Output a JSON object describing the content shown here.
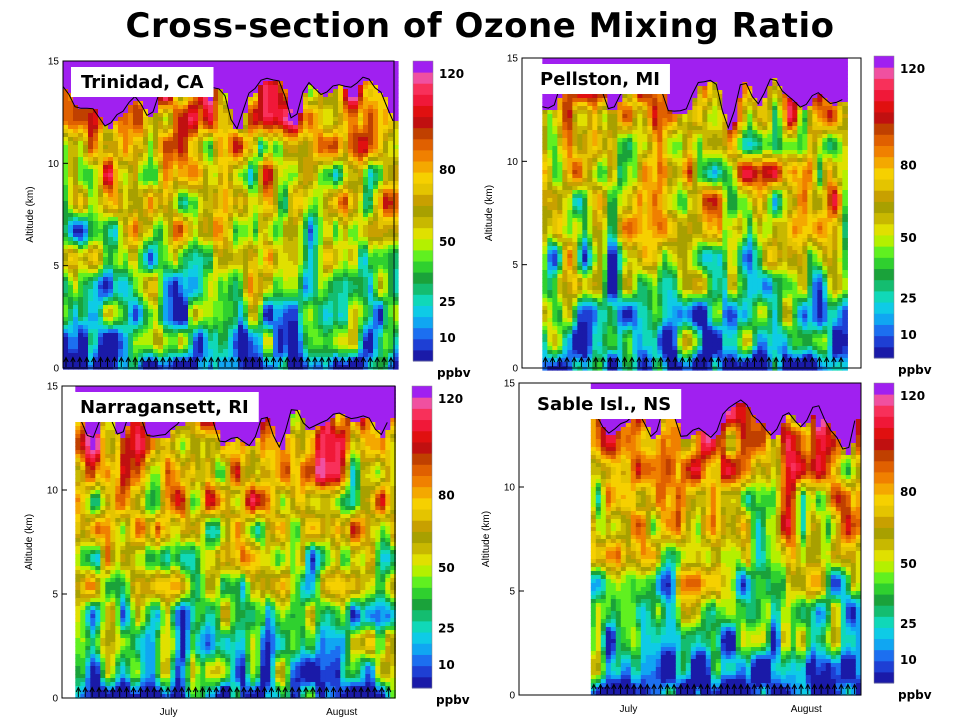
{
  "title": "Cross-section of Ozone Mixing Ratio",
  "chart_data": [
    {
      "type": "heatmap",
      "site": "Trinidad, CA",
      "ylabel": "Altitude (km)",
      "yticks": [
        0,
        5,
        10,
        15
      ],
      "ylim": [
        0,
        15
      ],
      "xticks": [],
      "colorbar": {
        "ticks": [
          120,
          80,
          50,
          25,
          10
        ],
        "unit": "ppbv",
        "range": [
          0,
          125
        ]
      },
      "coverage": [
        0.0,
        1.0
      ],
      "seed": 11,
      "launch_count": 48
    },
    {
      "type": "heatmap",
      "site": "Pellston, MI",
      "ylabel": "Altitude (km)",
      "yticks": [
        0,
        5,
        10,
        15
      ],
      "ylim": [
        0,
        15
      ],
      "xticks": [],
      "colorbar": {
        "ticks": [
          120,
          80,
          50,
          25,
          10
        ],
        "unit": "ppbv",
        "range": [
          0,
          125
        ]
      },
      "coverage": [
        0.06,
        0.95
      ],
      "seed": 23,
      "launch_count": 42
    },
    {
      "type": "heatmap",
      "site": "Narragansett, RI",
      "ylabel": "Altitude (km)",
      "yticks": [
        0,
        5,
        10,
        15
      ],
      "ylim": [
        0,
        15
      ],
      "xticks": [
        "July",
        "August"
      ],
      "colorbar": {
        "ticks": [
          120,
          80,
          50,
          25,
          10
        ],
        "unit": "ppbv",
        "range": [
          0,
          125
        ]
      },
      "coverage": [
        0.04,
        0.99
      ],
      "seed": 37,
      "launch_count": 46
    },
    {
      "type": "heatmap",
      "site": "Sable Isl., NS",
      "ylabel": "Altitude (km)",
      "yticks": [
        0,
        5,
        10,
        15
      ],
      "ylim": [
        0,
        15
      ],
      "xticks": [
        "July",
        "August"
      ],
      "colorbar": {
        "ticks": [
          120,
          80,
          50,
          25,
          10
        ],
        "unit": "ppbv",
        "range": [
          0,
          125
        ]
      },
      "coverage": [
        0.21,
        0.99
      ],
      "seed": 53,
      "launch_count": 40
    }
  ]
}
